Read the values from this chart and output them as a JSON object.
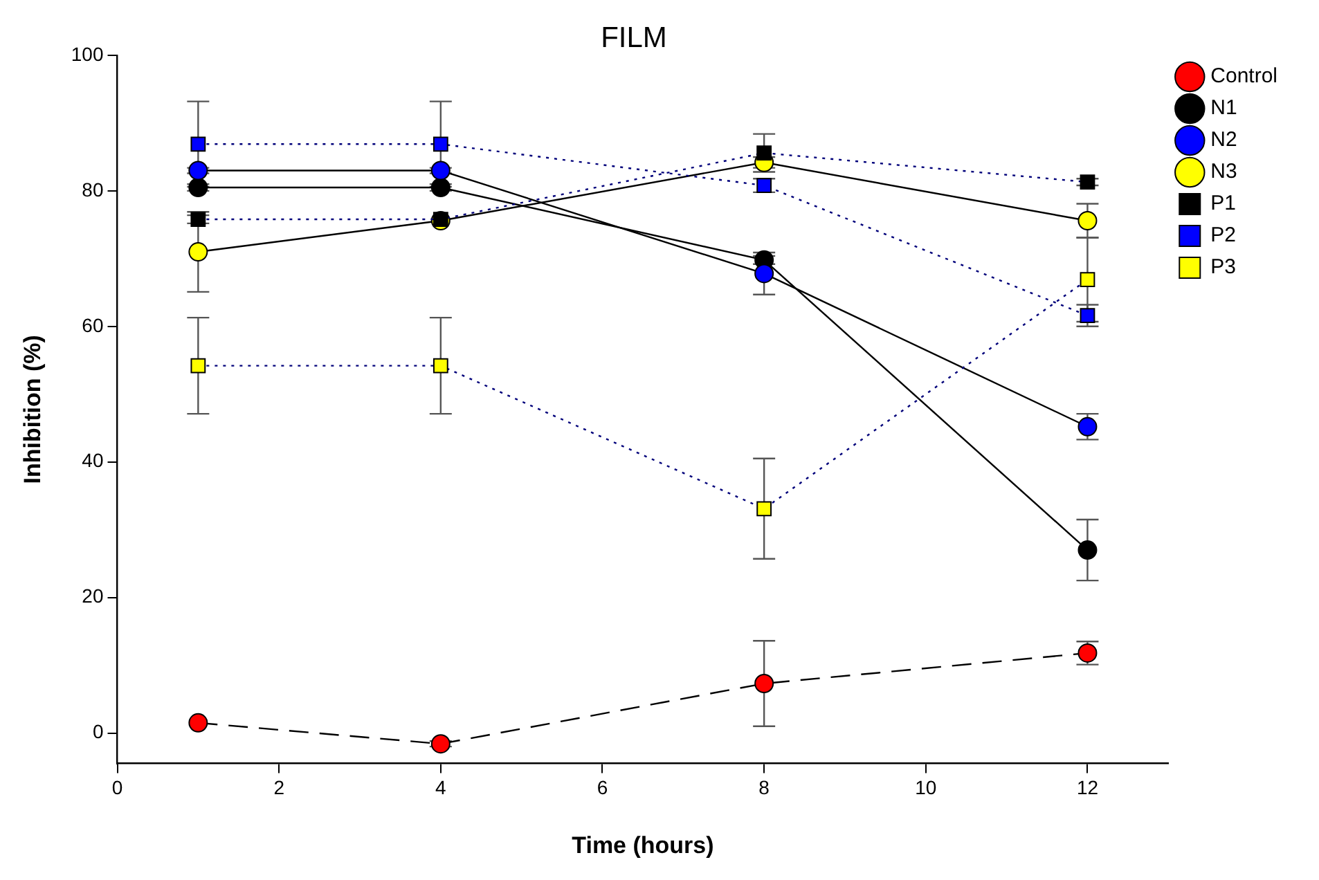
{
  "chart_data": {
    "type": "line",
    "title": "FILM",
    "xlabel": "Time (hours)",
    "ylabel": "Inhibition (%)",
    "x": [
      1,
      4,
      8,
      12
    ],
    "xlim": [
      0,
      13
    ],
    "xticks": [
      0,
      2,
      4,
      6,
      8,
      10,
      12
    ],
    "ylim": [
      -4.5,
      100
    ],
    "yticks": [
      0,
      20,
      40,
      60,
      80,
      100
    ],
    "grid": false,
    "legend": "top right",
    "series": [
      {
        "name": "Control",
        "color": "#ff0000",
        "marker": "circle",
        "line_style": "dashed",
        "values": [
          1.5,
          -1.6,
          7.3,
          11.8
        ],
        "errors": [
          null,
          0.4,
          6.3,
          1.7
        ]
      },
      {
        "name": "N1",
        "color": "#000000",
        "marker": "circle",
        "line_style": "solid",
        "values": [
          80.5,
          80.5,
          69.8,
          27
        ],
        "errors": [
          0.5,
          0.5,
          0.6,
          4.5
        ]
      },
      {
        "name": "N2",
        "color": "#0000ff",
        "marker": "circle",
        "line_style": "solid",
        "values": [
          83,
          83,
          67.8,
          45.2
        ],
        "errors": [
          0.4,
          0.4,
          3.1,
          1.9
        ]
      },
      {
        "name": "N3",
        "color": "#ffff00",
        "marker": "circle",
        "line_style": "solid",
        "values": [
          71,
          75.6,
          84.2,
          75.6
        ],
        "errors": [
          5.9,
          null,
          0.8,
          2.5
        ]
      },
      {
        "name": "P1",
        "color": "#000000",
        "marker": "square",
        "line_style": "dotted",
        "values": [
          75.8,
          75.8,
          85.6,
          81.3
        ],
        "errors": [
          0.6,
          null,
          2.8,
          0.5
        ]
      },
      {
        "name": "P2",
        "color": "#0000ff",
        "marker": "square",
        "line_style": "dotted",
        "values": [
          86.9,
          86.9,
          80.8,
          61.6
        ],
        "errors": [
          6.3,
          6.3,
          1.0,
          1.6
        ]
      },
      {
        "name": "P3",
        "color": "#ffff00",
        "marker": "square",
        "line_style": "dotted",
        "values": [
          54.2,
          54.2,
          33.1,
          66.9
        ],
        "errors": [
          7.1,
          7.1,
          7.4,
          6.2
        ]
      }
    ]
  }
}
